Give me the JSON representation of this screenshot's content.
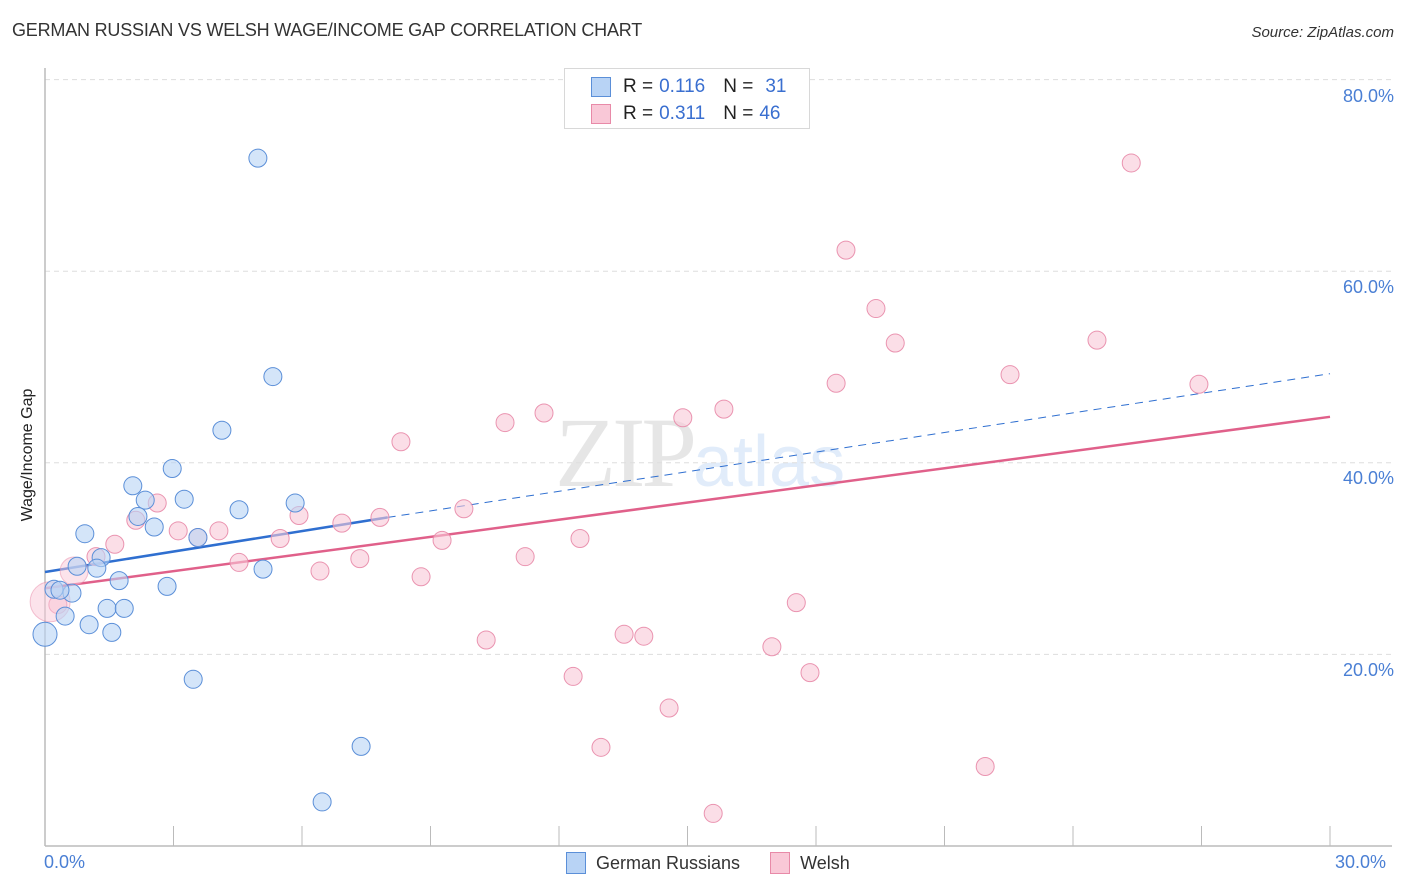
{
  "header": {
    "title": "GERMAN RUSSIAN VS WELSH WAGE/INCOME GAP CORRELATION CHART",
    "source": "Source: ZipAtlas.com"
  },
  "watermark": {
    "zip": "ZIP",
    "atlas": "atlas"
  },
  "legend_top": {
    "rows": [
      {
        "r_label": "R =",
        "r_value": "0.116",
        "n_label": "N =",
        "n_value": "31"
      },
      {
        "r_label": "R =",
        "r_value": "0.311",
        "n_label": "N =",
        "n_value": "46"
      }
    ]
  },
  "legend_bottom": {
    "items": [
      {
        "label": "German Russians"
      },
      {
        "label": "Welsh"
      }
    ]
  },
  "axes": {
    "ylabel": "Wage/Income Gap",
    "y_ticks": [
      "80.0%",
      "60.0%",
      "40.0%",
      "20.0%"
    ],
    "x_ticks": [
      "0.0%",
      "30.0%"
    ]
  },
  "colors": {
    "german_russians_fill": "#b8d3f5",
    "german_russians_stroke": "#5b8fd8",
    "german_russians_line": "#2f6fd0",
    "welsh_fill": "#f9c8d7",
    "welsh_stroke": "#e88aa8",
    "welsh_line": "#e0608a",
    "tick_label": "#4a7fd4"
  },
  "chart_data": {
    "type": "scatter",
    "title": "GERMAN RUSSIAN VS WELSH WAGE/INCOME GAP CORRELATION CHART",
    "xlabel": "",
    "ylabel": "Wage/Income Gap",
    "xlim": [
      0,
      30
    ],
    "ylim": [
      0,
      84
    ],
    "x_unit": "%",
    "y_unit": "%",
    "grid": true,
    "legend_position": "bottom",
    "series": [
      {
        "name": "German Russians",
        "R": 0.116,
        "N": 31,
        "trend": {
          "x": [
            0,
            8.0
          ],
          "y": [
            28.6,
            34.3
          ],
          "extended_dashed_to": {
            "x": 30,
            "y": 49.3
          }
        },
        "points": [
          [
            4.97,
            71.8
          ],
          [
            5.32,
            49.0
          ],
          [
            4.13,
            43.4
          ],
          [
            2.97,
            39.4
          ],
          [
            2.05,
            37.6
          ],
          [
            3.25,
            36.2
          ],
          [
            2.34,
            36.1
          ],
          [
            4.53,
            35.1
          ],
          [
            5.84,
            35.8
          ],
          [
            2.17,
            34.4
          ],
          [
            2.55,
            33.3
          ],
          [
            0.93,
            32.6
          ],
          [
            3.57,
            32.2
          ],
          [
            1.31,
            30.1
          ],
          [
            0.75,
            29.2
          ],
          [
            1.21,
            29.0
          ],
          [
            5.09,
            28.9
          ],
          [
            1.73,
            27.7
          ],
          [
            0.21,
            26.8
          ],
          [
            0.63,
            26.4
          ],
          [
            2.85,
            27.1
          ],
          [
            0.47,
            24.0
          ],
          [
            1.45,
            24.8
          ],
          [
            1.85,
            24.8
          ],
          [
            1.03,
            23.1
          ],
          [
            1.56,
            22.3
          ],
          [
            0.0,
            22.1
          ],
          [
            3.46,
            17.4
          ],
          [
            7.38,
            10.4
          ],
          [
            6.47,
            4.6
          ],
          [
            0.35,
            26.7
          ]
        ]
      },
      {
        "name": "Welsh",
        "R": 0.311,
        "N": 46,
        "trend": {
          "x": [
            0,
            30
          ],
          "y": [
            26.9,
            44.8
          ]
        },
        "points": [
          [
            25.36,
            71.3
          ],
          [
            18.7,
            62.2
          ],
          [
            19.4,
            56.1
          ],
          [
            19.85,
            52.5
          ],
          [
            24.56,
            52.8
          ],
          [
            22.53,
            49.2
          ],
          [
            26.94,
            48.2
          ],
          [
            18.47,
            48.3
          ],
          [
            15.85,
            45.6
          ],
          [
            14.89,
            44.7
          ],
          [
            11.65,
            45.2
          ],
          [
            10.74,
            44.2
          ],
          [
            8.31,
            42.2
          ],
          [
            9.78,
            35.2
          ],
          [
            7.82,
            34.3
          ],
          [
            6.93,
            33.7
          ],
          [
            5.93,
            34.5
          ],
          [
            5.49,
            32.1
          ],
          [
            4.06,
            32.9
          ],
          [
            3.57,
            32.2
          ],
          [
            2.62,
            35.8
          ],
          [
            2.12,
            34.0
          ],
          [
            1.19,
            30.2
          ],
          [
            1.63,
            31.5
          ],
          [
            0.68,
            28.7
          ],
          [
            0.3,
            25.2
          ],
          [
            9.27,
            31.9
          ],
          [
            12.49,
            32.1
          ],
          [
            11.21,
            30.2
          ],
          [
            7.35,
            30.0
          ],
          [
            6.42,
            28.7
          ],
          [
            4.53,
            29.6
          ],
          [
            8.78,
            28.1
          ],
          [
            17.54,
            25.4
          ],
          [
            10.3,
            21.5
          ],
          [
            13.52,
            22.1
          ],
          [
            13.98,
            21.9
          ],
          [
            16.97,
            20.8
          ],
          [
            12.33,
            17.7
          ],
          [
            17.86,
            18.1
          ],
          [
            14.57,
            14.4
          ],
          [
            12.98,
            10.3
          ],
          [
            21.95,
            8.3
          ],
          [
            15.6,
            3.4
          ],
          [
            3.11,
            32.9
          ],
          [
            0.12,
            25.5
          ]
        ]
      }
    ]
  }
}
